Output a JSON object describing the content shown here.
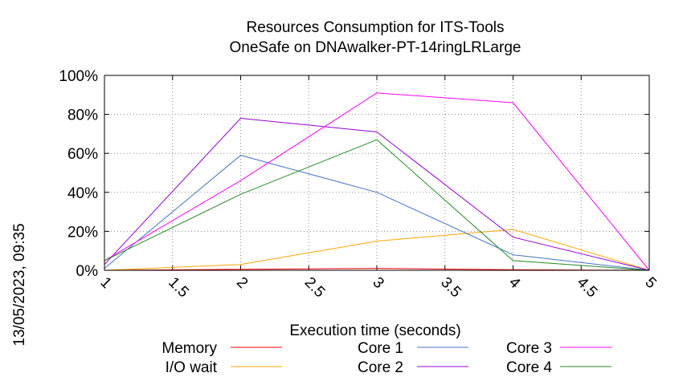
{
  "chart_data": {
    "type": "line",
    "title_line1": "Resources Consumption for ITS-Tools",
    "title_line2": "OneSafe on DNAwalker-PT-14ringLRLarge",
    "xlabel": "Execution time (seconds)",
    "ylabel": "",
    "side_label": "13/05/2023, 09:35",
    "xlim": [
      1,
      5
    ],
    "ylim": [
      0,
      100
    ],
    "x_ticks": [
      1,
      1.5,
      2,
      2.5,
      3,
      3.5,
      4,
      4.5,
      5
    ],
    "x_tick_labels": [
      "1",
      "1.5",
      "2",
      "2.5",
      "3",
      "3.5",
      "4",
      "4.5",
      "5"
    ],
    "y_ticks": [
      0,
      20,
      40,
      60,
      80,
      100
    ],
    "y_tick_labels": [
      "0%",
      "20%",
      "40%",
      "60%",
      "80%",
      "100%"
    ],
    "grid": true,
    "legend_placement": "bottom",
    "x": [
      1,
      2,
      3,
      4,
      5
    ],
    "series": [
      {
        "name": "Memory",
        "color": "#ff0000",
        "values": [
          0,
          0.5,
          1,
          0.3,
          0
        ]
      },
      {
        "name": "I/O wait",
        "color": "#ffa500",
        "values": [
          0,
          3,
          15,
          21,
          0
        ]
      },
      {
        "name": "Core 1",
        "color": "#4472c4",
        "values": [
          1,
          59,
          40,
          8,
          0
        ]
      },
      {
        "name": "Core 2",
        "color": "#9400d3",
        "values": [
          3,
          78,
          71,
          17,
          0
        ]
      },
      {
        "name": "Core 3",
        "color": "#ff00ff",
        "values": [
          5,
          46,
          91,
          86,
          0
        ]
      },
      {
        "name": "Core 4",
        "color": "#228b22",
        "values": [
          5,
          39,
          67,
          5,
          0
        ]
      }
    ]
  }
}
